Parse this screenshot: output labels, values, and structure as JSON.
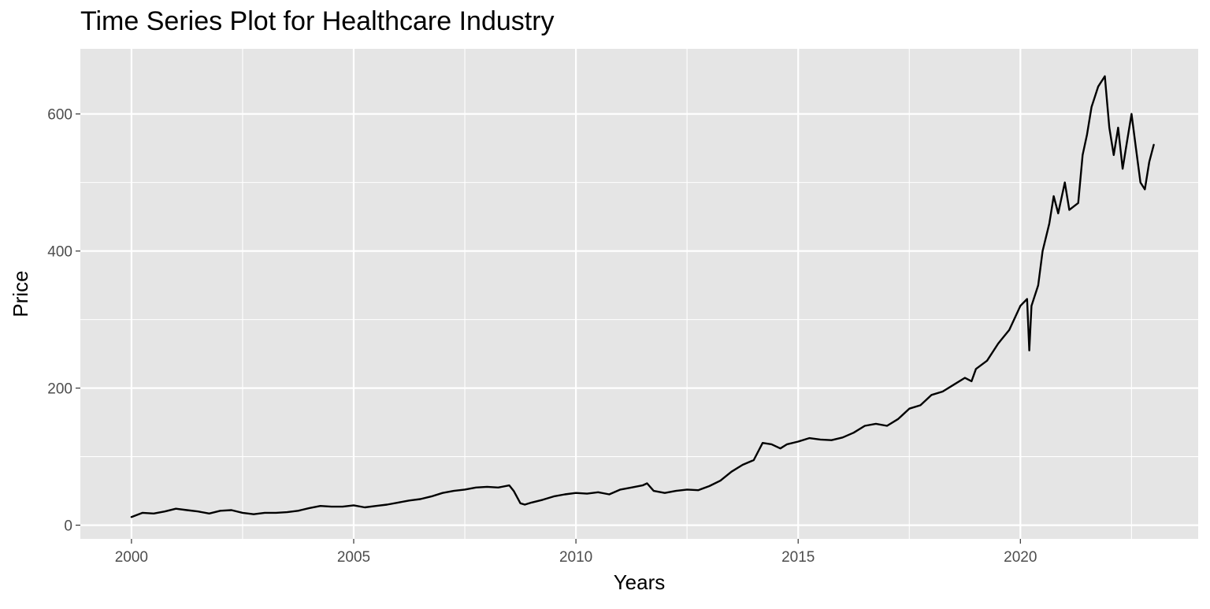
{
  "chart_data": {
    "type": "line",
    "title": "Time Series Plot for Healthcare Industry",
    "xlabel": "Years",
    "ylabel": "Price",
    "xlim": [
      1998.85,
      2024.0
    ],
    "ylim": [
      -20,
      695
    ],
    "x_ticks": [
      2000,
      2005,
      2010,
      2015,
      2020
    ],
    "y_ticks": [
      0,
      200,
      400,
      600
    ],
    "grid": true,
    "legend": "none",
    "panel_background": "#e5e5e5",
    "grid_color": "#ffffff",
    "line_color": "#000000",
    "series": [
      {
        "x": [
          2000.0,
          2000.25,
          2000.5,
          2000.75,
          2001.0,
          2001.25,
          2001.5,
          2001.75,
          2002.0,
          2002.25,
          2002.5,
          2002.75,
          2003.0,
          2003.25,
          2003.5,
          2003.75,
          2004.0,
          2004.25,
          2004.5,
          2004.75,
          2005.0,
          2005.25,
          2005.5,
          2005.75,
          2006.0,
          2006.25,
          2006.5,
          2006.75,
          2007.0,
          2007.25,
          2007.5,
          2007.75,
          2008.0,
          2008.25,
          2008.5,
          2008.6,
          2008.75,
          2008.85,
          2009.0,
          2009.25,
          2009.5,
          2009.75,
          2010.0,
          2010.25,
          2010.5,
          2010.75,
          2011.0,
          2011.25,
          2011.5,
          2011.6,
          2011.75,
          2012.0,
          2012.25,
          2012.5,
          2012.75,
          2013.0,
          2013.25,
          2013.5,
          2013.75,
          2014.0,
          2014.2,
          2014.4,
          2014.6,
          2014.75,
          2015.0,
          2015.25,
          2015.5,
          2015.75,
          2016.0,
          2016.25,
          2016.5,
          2016.75,
          2017.0,
          2017.25,
          2017.5,
          2017.75,
          2018.0,
          2018.25,
          2018.5,
          2018.75,
          2018.9,
          2019.0,
          2019.25,
          2019.5,
          2019.75,
          2020.0,
          2020.15,
          2020.2,
          2020.25,
          2020.4,
          2020.5,
          2020.65,
          2020.75,
          2020.85,
          2021.0,
          2021.1,
          2021.2,
          2021.3,
          2021.4,
          2021.5,
          2021.6,
          2021.75,
          2021.9,
          2022.0,
          2022.1,
          2022.2,
          2022.3,
          2022.4,
          2022.5,
          2022.6,
          2022.7,
          2022.8,
          2022.9,
          2023.0
        ],
        "y": [
          12,
          18,
          17,
          20,
          24,
          22,
          20,
          17,
          21,
          22,
          18,
          16,
          18,
          18,
          19,
          21,
          25,
          28,
          27,
          27,
          29,
          26,
          28,
          30,
          33,
          36,
          38,
          42,
          47,
          50,
          52,
          55,
          56,
          55,
          58,
          50,
          32,
          30,
          33,
          37,
          42,
          45,
          47,
          46,
          48,
          45,
          52,
          55,
          58,
          61,
          50,
          47,
          50,
          52,
          51,
          57,
          65,
          78,
          88,
          95,
          120,
          118,
          112,
          118,
          122,
          127,
          125,
          124,
          128,
          135,
          145,
          148,
          145,
          155,
          170,
          175,
          190,
          195,
          205,
          215,
          210,
          228,
          240,
          265,
          285,
          320,
          330,
          255,
          320,
          350,
          400,
          440,
          480,
          455,
          500,
          460,
          465,
          470,
          540,
          570,
          610,
          640,
          655,
          580,
          540,
          580,
          520,
          560,
          600,
          550,
          500,
          490,
          530,
          555
        ]
      }
    ]
  }
}
